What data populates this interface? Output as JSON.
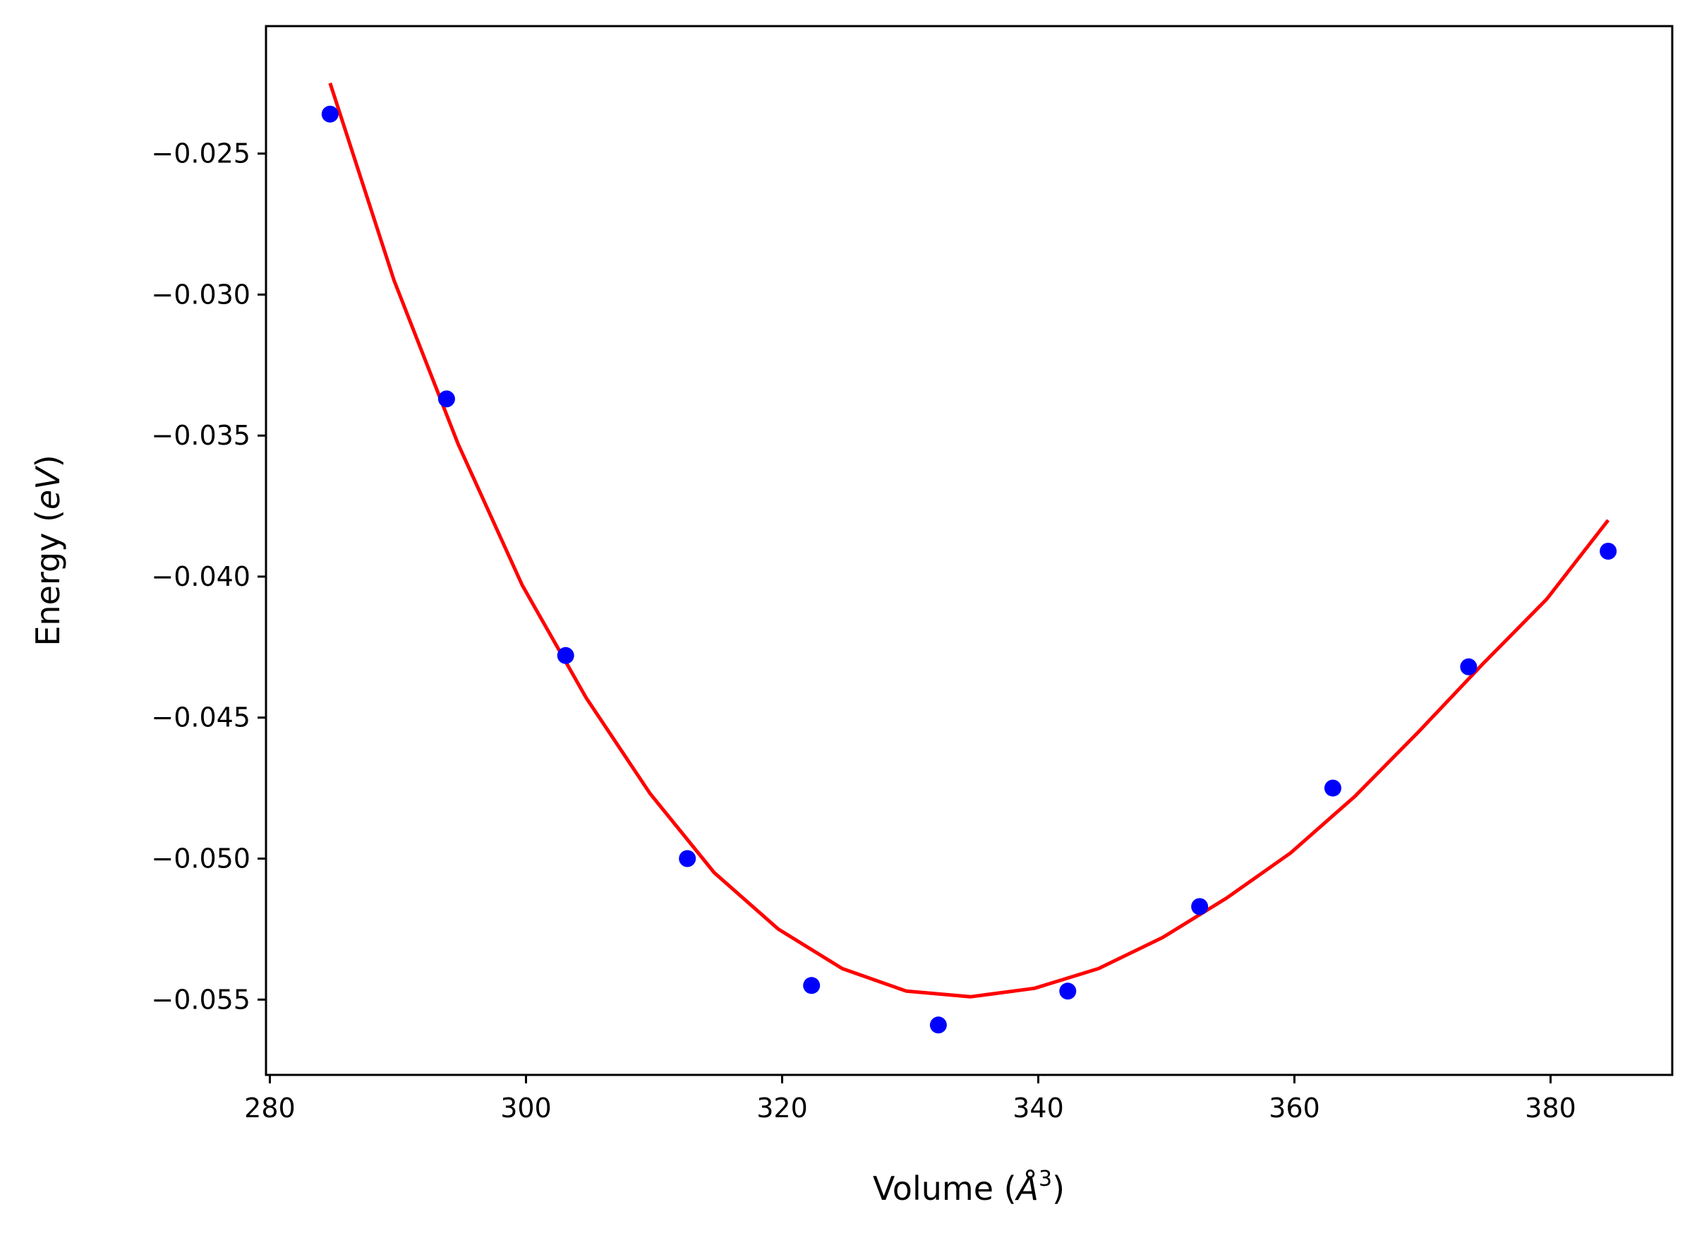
{
  "chart_data": {
    "type": "scatter",
    "xlabel": "Volume (Å³)",
    "xlabel_parts": {
      "prefix": "Volume (",
      "symbol": "Å",
      "superscript": "3",
      "suffix": ")"
    },
    "ylabel": "Energy (eV)",
    "ylabel_parts": {
      "prefix": "Energy (",
      "unit": "eV",
      "suffix": ")"
    },
    "xlim": [
      279.7,
      389.5
    ],
    "ylim": [
      -0.05767,
      -0.02048
    ],
    "xticks": [
      280,
      300,
      320,
      340,
      360,
      380
    ],
    "yticks": [
      -0.025,
      -0.03,
      -0.035,
      -0.04,
      -0.045,
      -0.05,
      -0.055
    ],
    "grid": false,
    "legend": "none",
    "series": [
      {
        "kind": "points",
        "color": "#0000ff",
        "x": [
          284.7,
          293.8,
          303.1,
          312.6,
          322.3,
          332.2,
          342.3,
          352.6,
          363.0,
          373.6,
          384.5
        ],
        "y": [
          -0.0236,
          -0.0337,
          -0.0428,
          -0.05,
          -0.0545,
          -0.0559,
          -0.0547,
          -0.0517,
          -0.0475,
          -0.0432,
          -0.0391
        ]
      },
      {
        "kind": "fit",
        "color": "#ff0000",
        "x": [
          284.7,
          289.7,
          294.7,
          299.7,
          304.7,
          309.7,
          314.7,
          319.7,
          324.7,
          329.7,
          334.7,
          339.7,
          344.7,
          349.7,
          354.7,
          359.7,
          364.7,
          369.7,
          374.7,
          379.7,
          384.5
        ],
        "y": [
          -0.0225,
          -0.0295,
          -0.0353,
          -0.0403,
          -0.0443,
          -0.0477,
          -0.0505,
          -0.0525,
          -0.0539,
          -0.0547,
          -0.0549,
          -0.0546,
          -0.0539,
          -0.0528,
          -0.0514,
          -0.0498,
          -0.0478,
          -0.0455,
          -0.0431,
          -0.0408,
          -0.038
        ]
      }
    ]
  }
}
